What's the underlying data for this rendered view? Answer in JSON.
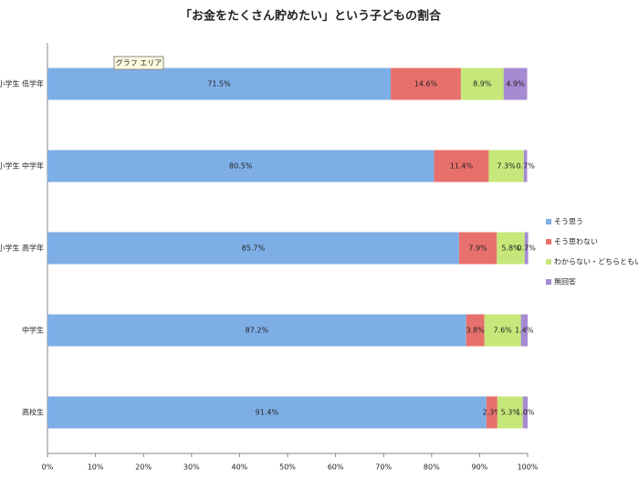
{
  "chart_data": {
    "type": "stacked-bar-horizontal",
    "title": "「お金をたくさん貯めたい」という子どもの割合",
    "annotation": "グラフ エリア",
    "categories": [
      "小学生 低学年",
      "小学生 中学年",
      "小学生 高学年",
      "中学生",
      "高校生"
    ],
    "series": [
      {
        "name": "そう思う",
        "color": "#7eaee6",
        "values": [
          71.5,
          80.5,
          85.7,
          87.2,
          91.4
        ],
        "value_labels": [
          "71.5%",
          "80.5%",
          "85.7%",
          "87.2%",
          "91.4%"
        ]
      },
      {
        "name": "そう思わない",
        "color": "#e8706c",
        "values": [
          14.6,
          11.4,
          7.9,
          3.8,
          2.3
        ],
        "value_labels": [
          "14.6%",
          "11.4%",
          "7.9%",
          "3.8%",
          "2.3%"
        ]
      },
      {
        "name": "わからない・どちらともいえない",
        "color": "#c6e87a",
        "values": [
          8.9,
          7.3,
          5.8,
          7.6,
          5.3
        ],
        "value_labels": [
          "8.9%",
          "7.3%",
          "5.8%",
          "7.6%",
          "5.3%"
        ]
      },
      {
        "name": "無回答",
        "color": "#a68ad2",
        "values": [
          4.9,
          0.7,
          0.7,
          1.4,
          1.0
        ],
        "value_labels": [
          "4.9%",
          "0.7%",
          "0.7%",
          "1.4%",
          "1.0%"
        ]
      }
    ],
    "xlim": [
      0,
      100
    ],
    "xticks": [
      {
        "value": 0,
        "label": "0%"
      },
      {
        "value": 10,
        "label": "10%"
      },
      {
        "value": 20,
        "label": "20%"
      },
      {
        "value": 30,
        "label": "30%"
      },
      {
        "value": 40,
        "label": "40%"
      },
      {
        "value": 50,
        "label": "50%"
      },
      {
        "value": 60,
        "label": "60%"
      },
      {
        "value": 70,
        "label": "70%"
      },
      {
        "value": 80,
        "label": "80%"
      },
      {
        "value": 90,
        "label": "90%"
      },
      {
        "value": 100,
        "label": "100%"
      }
    ],
    "grid": false,
    "legend": "right"
  }
}
